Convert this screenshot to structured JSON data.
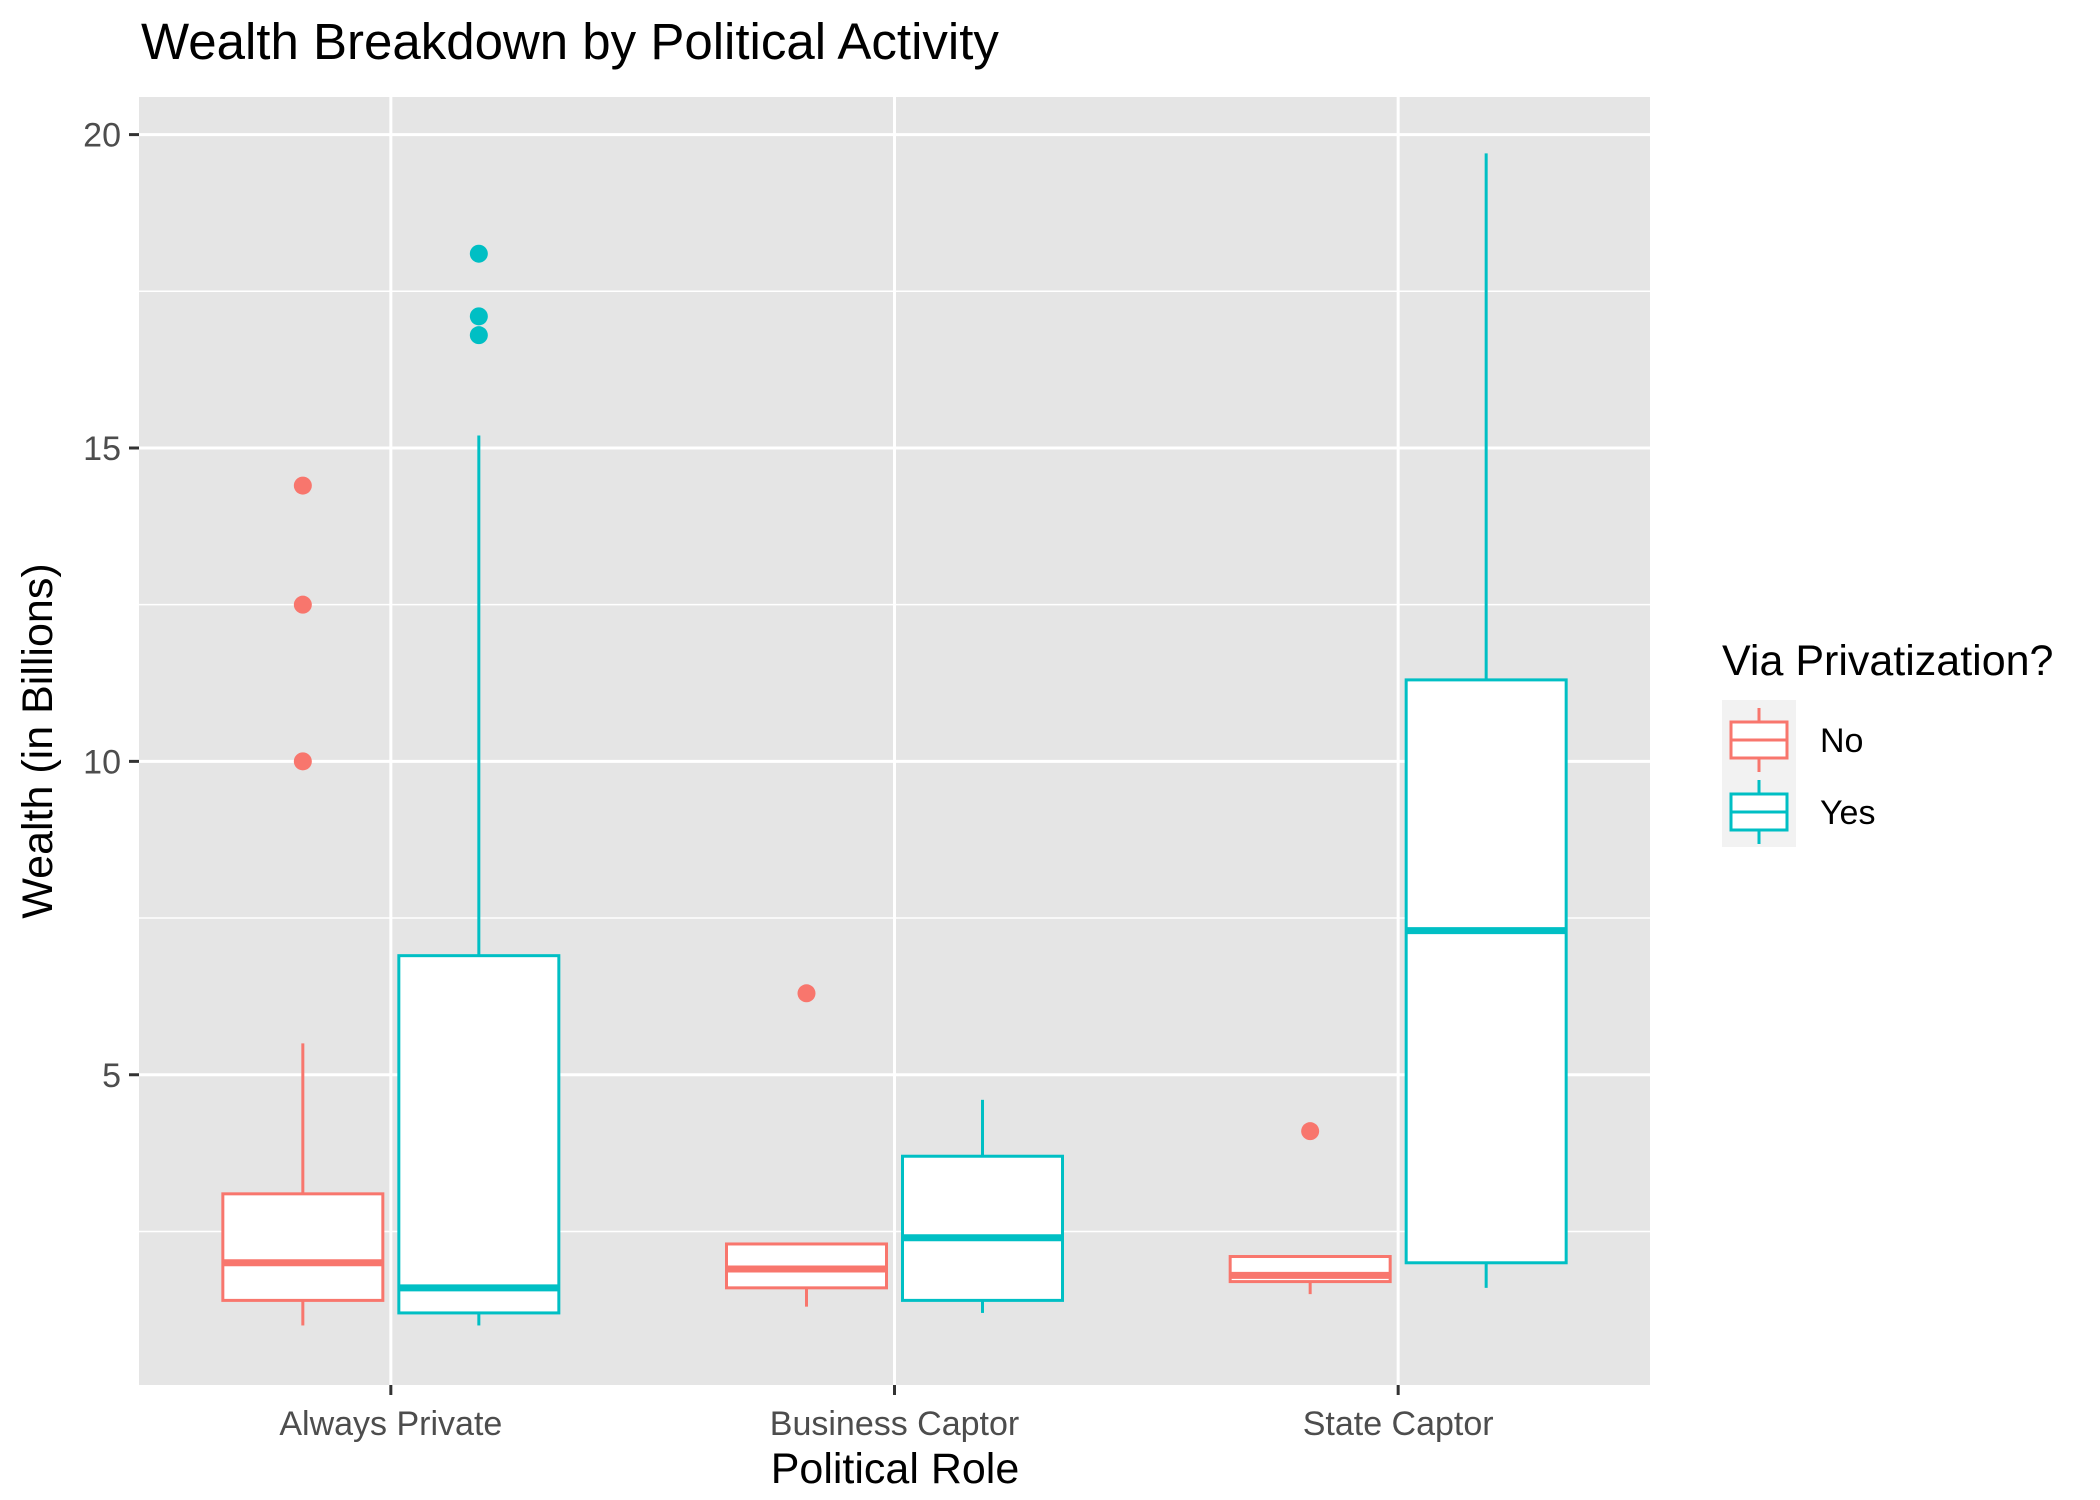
{
  "chart_data": {
    "type": "boxplot",
    "title": "Wealth Breakdown by Political Activity",
    "xlabel": "Political Role",
    "ylabel": "Wealth (in Billions)",
    "categories": [
      "Always Private",
      "Business Captor",
      "State Captor"
    ],
    "y_ticks": [
      5,
      10,
      15,
      20
    ],
    "y_tick_labels": [
      "5",
      "10",
      "15",
      "20"
    ],
    "ylim": [
      0.05,
      20.6
    ],
    "grid": true,
    "legend": {
      "title": "Via Privatization?",
      "position": "right",
      "entries": [
        "No",
        "Yes"
      ]
    },
    "series": [
      {
        "name": "No",
        "color": "#F8766D",
        "boxes": [
          {
            "category": "Always Private",
            "whisker_low": 1.0,
            "q1": 1.4,
            "median": 2.0,
            "q3": 3.1,
            "whisker_high": 5.5,
            "outliers": [
              10.0,
              12.5,
              14.4
            ]
          },
          {
            "category": "Business Captor",
            "whisker_low": 1.3,
            "q1": 1.6,
            "median": 1.9,
            "q3": 2.3,
            "whisker_high": 2.3,
            "outliers": [
              6.3
            ]
          },
          {
            "category": "State Captor",
            "whisker_low": 1.5,
            "q1": 1.7,
            "median": 1.8,
            "q3": 2.1,
            "whisker_high": 2.1,
            "outliers": [
              4.1
            ]
          }
        ]
      },
      {
        "name": "Yes",
        "color": "#00BFC4",
        "boxes": [
          {
            "category": "Always Private",
            "whisker_low": 1.0,
            "q1": 1.2,
            "median": 1.6,
            "q3": 6.9,
            "whisker_high": 15.2,
            "outliers": [
              16.8,
              17.1,
              18.1
            ]
          },
          {
            "category": "Business Captor",
            "whisker_low": 1.2,
            "q1": 1.4,
            "median": 2.4,
            "q3": 3.7,
            "whisker_high": 4.6,
            "outliers": []
          },
          {
            "category": "State Captor",
            "whisker_low": 1.6,
            "q1": 2.0,
            "median": 7.3,
            "q3": 11.3,
            "whisker_high": 19.7,
            "outliers": []
          }
        ]
      }
    ]
  },
  "colors": {
    "panel_background": "#E5E5E5",
    "grid": "#FFFFFF",
    "no": "#F8766D",
    "yes": "#00BFC4"
  }
}
